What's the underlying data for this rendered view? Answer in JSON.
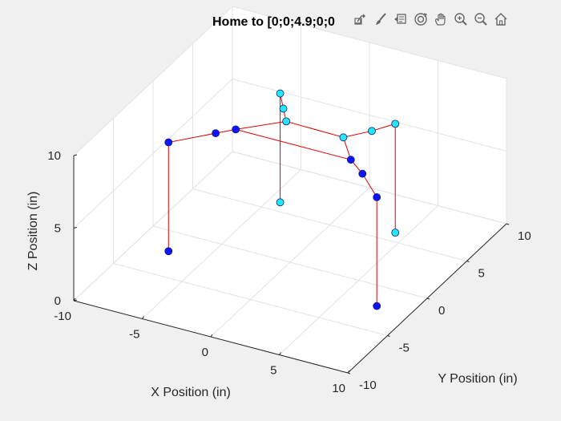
{
  "figure": {
    "title": "Home to [0;0;4.9;0;0"
  },
  "toolbar": {
    "items": [
      {
        "name": "export-icon"
      },
      {
        "name": "brush-icon"
      },
      {
        "name": "datatip-icon"
      },
      {
        "name": "rotate-3d-icon"
      },
      {
        "name": "pan-hand-icon"
      },
      {
        "name": "zoom-in-icon"
      },
      {
        "name": "zoom-out-icon"
      },
      {
        "name": "home-icon"
      }
    ]
  },
  "colors": {
    "link": "#e00000",
    "joint_dark": "#0a14ff",
    "joint_light": "#22e8ff",
    "axis": "#262626",
    "grid": "#e3e3e3",
    "pane": "#ffffff",
    "background": "#f0f0f0"
  },
  "chart_data": {
    "type": "3d-line-scatter",
    "xlabel": "X Position (in)",
    "ylabel": "Y Position (in)",
    "zlabel": "Z Position (in)",
    "xlim": [
      -10,
      10
    ],
    "ylim": [
      -10,
      10
    ],
    "zlim": [
      0,
      10
    ],
    "x_ticks": [
      "-10",
      "-5",
      "0",
      "5",
      "10"
    ],
    "y_ticks": [
      "-10",
      "-5",
      "0",
      "5",
      "10"
    ],
    "z_ticks": [
      "0",
      "5",
      "10"
    ],
    "grid": true,
    "legs": [
      {
        "color": "dark",
        "points": [
          {
            "x": -7.6,
            "y": -2.2,
            "z": 0.0
          },
          {
            "x": -7.6,
            "y": -2.2,
            "z": 7.5
          },
          {
            "x": -5.2,
            "y": -0.4,
            "z": 7.8
          },
          {
            "x": -4.2,
            "y": 0.4,
            "z": 7.9
          }
        ]
      },
      {
        "color": "dark",
        "points": [
          {
            "x": 7.6,
            "y": -2.2,
            "z": 0.0
          },
          {
            "x": 7.6,
            "y": -2.2,
            "z": 7.5
          },
          {
            "x": 5.8,
            "y": -0.9,
            "z": 8.0
          },
          {
            "x": 4.2,
            "y": 0.4,
            "z": 7.9
          }
        ]
      },
      {
        "color": "light",
        "points": [
          {
            "x": -4.2,
            "y": 6.0,
            "z": 0.0
          },
          {
            "x": -4.2,
            "y": 6.0,
            "z": 7.5
          },
          {
            "x": -3.1,
            "y": 4.5,
            "z": 7.5
          },
          {
            "x": -2.6,
            "y": 4.0,
            "z": 7.0
          }
        ]
      },
      {
        "color": "light",
        "points": [
          {
            "x": 4.2,
            "y": 6.0,
            "z": 0.0
          },
          {
            "x": 4.2,
            "y": 6.0,
            "z": 7.5
          },
          {
            "x": 3.3,
            "y": 4.6,
            "z": 7.5
          },
          {
            "x": 1.8,
            "y": 3.6,
            "z": 7.2
          }
        ]
      }
    ],
    "body": [
      {
        "x": -4.2,
        "y": 0.4,
        "z": 7.9
      },
      {
        "x": -2.6,
        "y": 4.0,
        "z": 7.0
      },
      {
        "x": 1.8,
        "y": 3.6,
        "z": 7.2
      },
      {
        "x": 4.2,
        "y": 0.4,
        "z": 7.9
      },
      {
        "x": -4.2,
        "y": 0.4,
        "z": 7.9
      }
    ]
  }
}
